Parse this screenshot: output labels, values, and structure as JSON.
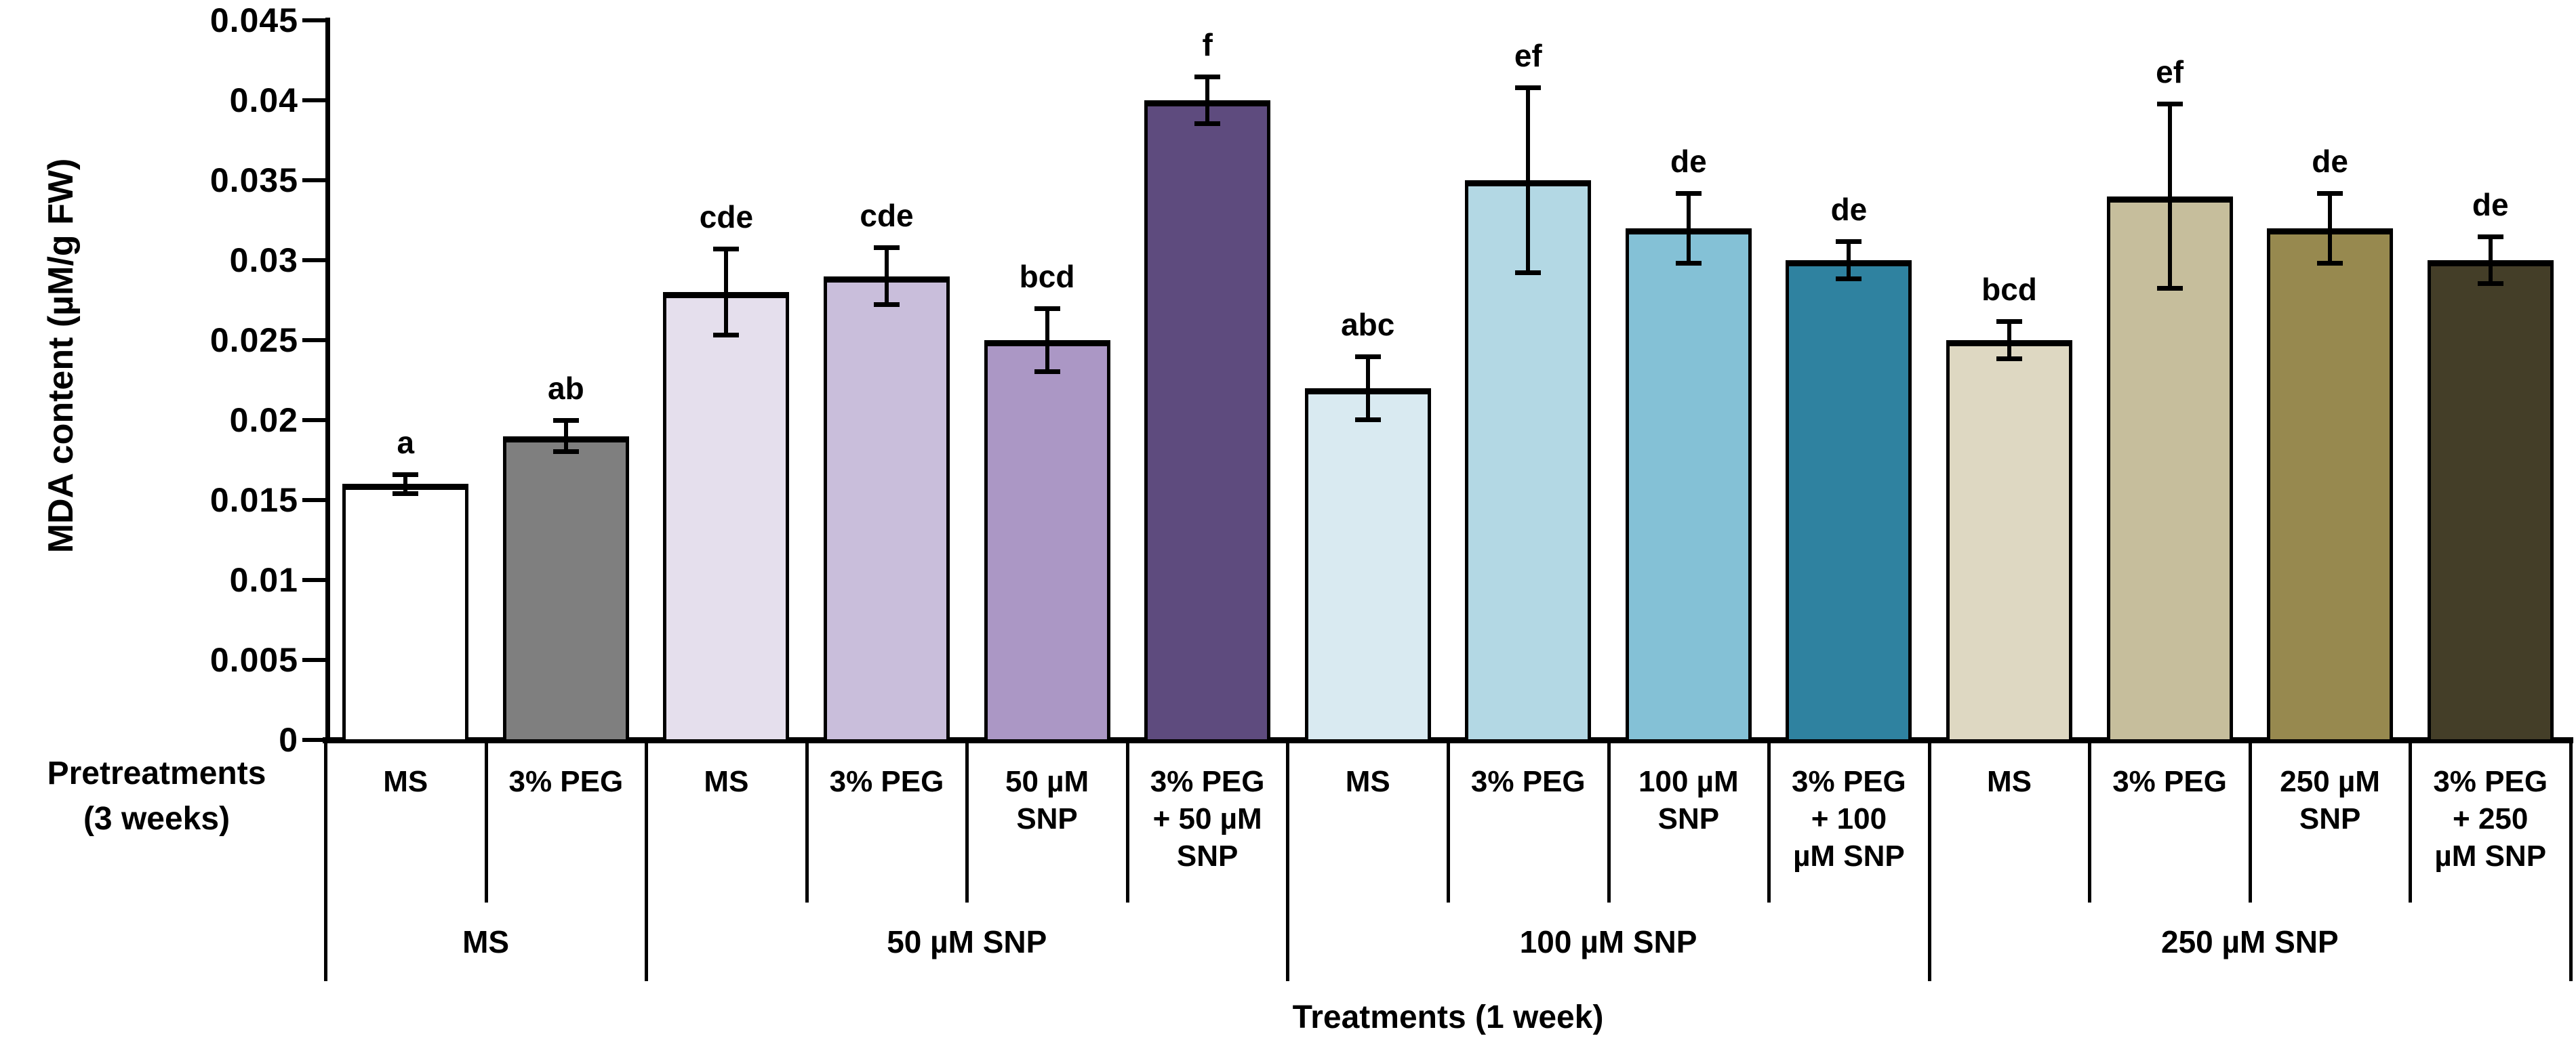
{
  "chart_data": {
    "type": "bar",
    "title": "",
    "ylabel": "MDA content (µM/g FW)",
    "xlabel": "Treatments (1 week)",
    "row_label": "Pretreatments\n(3 weeks)",
    "ylim": [
      0,
      0.045
    ],
    "grid": false,
    "legend": "none",
    "yticks": [
      {
        "value": 0,
        "label": "0"
      },
      {
        "value": 0.005,
        "label": "0.005"
      },
      {
        "value": 0.01,
        "label": "0.01"
      },
      {
        "value": 0.015,
        "label": "0.015"
      },
      {
        "value": 0.02,
        "label": "0.02"
      },
      {
        "value": 0.025,
        "label": "0.025"
      },
      {
        "value": 0.03,
        "label": "0.03"
      },
      {
        "value": 0.035,
        "label": "0.035"
      },
      {
        "value": 0.04,
        "label": "0.04"
      },
      {
        "value": 0.045,
        "label": "0.045"
      }
    ],
    "groups": [
      {
        "label": "MS",
        "bars": [
          {
            "pretreatment": "MS",
            "value": 0.016,
            "error": 0.0006,
            "letter": "a",
            "color": "#ffffff"
          },
          {
            "pretreatment": "3% PEG",
            "value": 0.019,
            "error": 0.001,
            "letter": "ab",
            "color": "#7f7f7f"
          }
        ]
      },
      {
        "label": "50 µM SNP",
        "bars": [
          {
            "pretreatment": "MS",
            "value": 0.028,
            "error": 0.0027,
            "letter": "cde",
            "color": "#e5dfed"
          },
          {
            "pretreatment": "3% PEG",
            "value": 0.029,
            "error": 0.0018,
            "letter": "cde",
            "color": "#c9bedb"
          },
          {
            "pretreatment": "50 µM\nSNP",
            "value": 0.025,
            "error": 0.002,
            "letter": "bcd",
            "color": "#ab97c5"
          },
          {
            "pretreatment": "3% PEG\n+ 50 µM\nSNP",
            "value": 0.04,
            "error": 0.0015,
            "letter": "f",
            "color": "#5e4b7e"
          }
        ]
      },
      {
        "label": "100 µM SNP",
        "bars": [
          {
            "pretreatment": "MS",
            "value": 0.022,
            "error": 0.002,
            "letter": "abc",
            "color": "#d9eaf1"
          },
          {
            "pretreatment": "3% PEG",
            "value": 0.035,
            "error": 0.0058,
            "letter": "ef",
            "color": "#b3d8e4"
          },
          {
            "pretreatment": "100 µM\nSNP",
            "value": 0.032,
            "error": 0.0022,
            "letter": "de",
            "color": "#84c1d6"
          },
          {
            "pretreatment": "3% PEG\n+ 100\nµM SNP",
            "value": 0.03,
            "error": 0.0012,
            "letter": "de",
            "color": "#2f82a0"
          }
        ]
      },
      {
        "label": "250 µM SNP",
        "bars": [
          {
            "pretreatment": "MS",
            "value": 0.025,
            "error": 0.0012,
            "letter": "bcd",
            "color": "#ded8c2"
          },
          {
            "pretreatment": "3% PEG",
            "value": 0.034,
            "error": 0.0058,
            "letter": "ef",
            "color": "#c6be9c"
          },
          {
            "pretreatment": "250 µM\nSNP",
            "value": 0.032,
            "error": 0.0022,
            "letter": "de",
            "color": "#97894f"
          },
          {
            "pretreatment": "3% PEG\n+ 250\nµM SNP",
            "value": 0.03,
            "error": 0.0015,
            "letter": "de",
            "color": "#443e28"
          }
        ]
      }
    ]
  }
}
